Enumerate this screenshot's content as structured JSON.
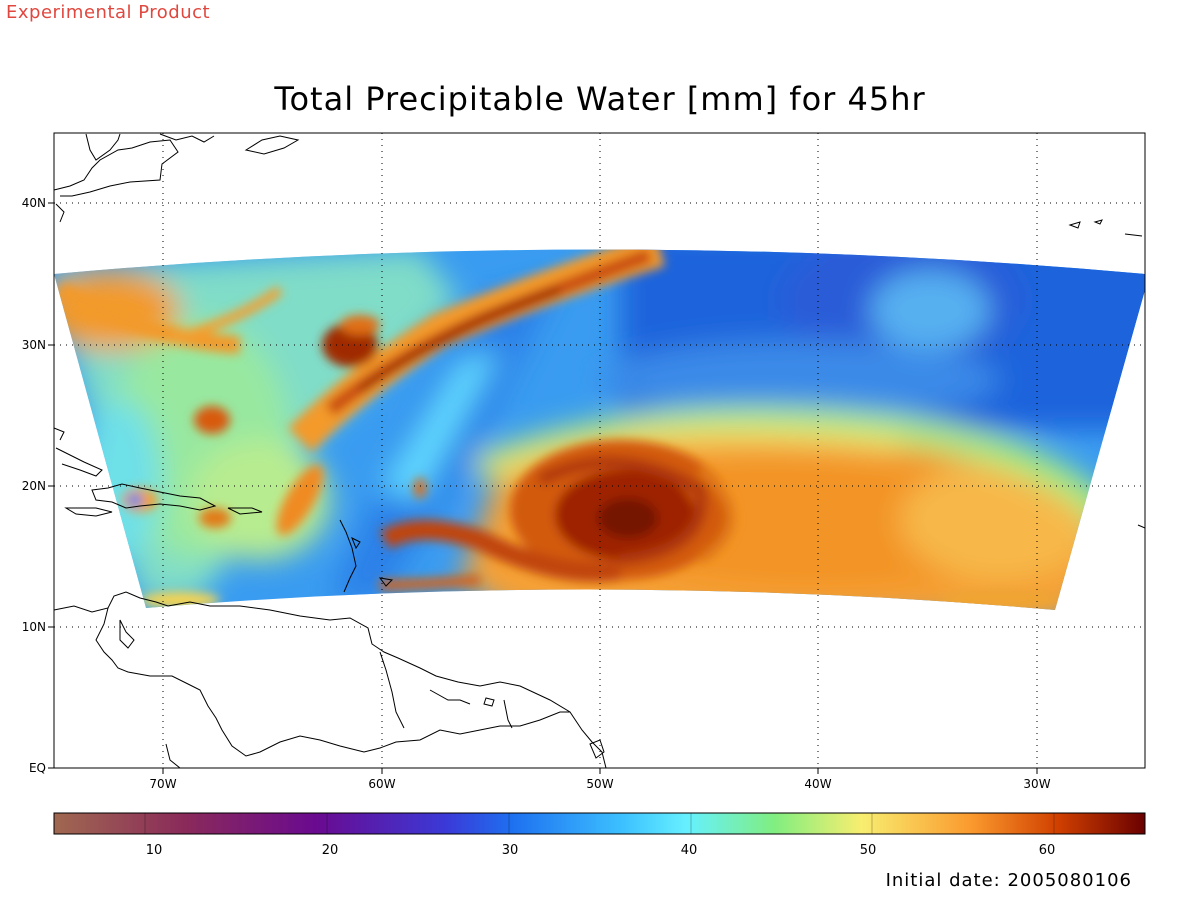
{
  "banner": "Experimental Product",
  "map": {
    "title": "Total Precipitable Water [mm] for 45hr",
    "lat_ticks": [
      "40N",
      "30N",
      "20N",
      "10N",
      "EQ"
    ],
    "lon_ticks": [
      "70W",
      "60W",
      "50W",
      "40W",
      "30W"
    ],
    "variable": "Total Precipitable Water",
    "units": "mm",
    "forecast_hour": "45hr",
    "features": [
      "hurricane vortex near 48W 18N",
      "moist plume from Caribbean toward 45W 37N"
    ]
  },
  "colorbar": {
    "ticks": [
      "10",
      "20",
      "30",
      "40",
      "50",
      "60"
    ],
    "range": [
      5,
      65
    ],
    "stops": [
      "#a06850",
      "#8a2a5a",
      "#6a0a90",
      "#1e56e6",
      "#1aa0ff",
      "#66f0ff",
      "#80ee80",
      "#f8ee70",
      "#fb9a2e",
      "#e06000",
      "#7a0000"
    ]
  },
  "footer": {
    "initial_date_text": "Initial date: 2005080106"
  }
}
